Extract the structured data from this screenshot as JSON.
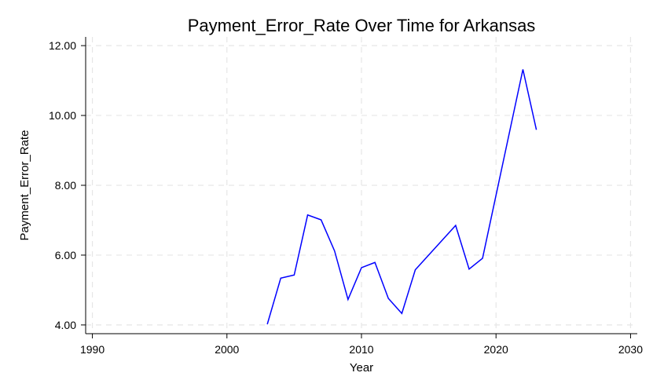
{
  "chart_data": {
    "type": "line",
    "title": "Payment_Error_Rate Over Time for Arkansas",
    "xlabel": "Year",
    "ylabel": "Payment_Error_Rate",
    "xlim": [
      1989.5,
      2030.5
    ],
    "ylim": [
      3.75,
      12.25
    ],
    "x_ticks": [
      1990,
      2000,
      2010,
      2020,
      2030
    ],
    "x_tick_labels": [
      "1990",
      "2000",
      "2010",
      "2020",
      "2030"
    ],
    "y_ticks": [
      4,
      6,
      8,
      10,
      12
    ],
    "y_tick_labels": [
      "4.00",
      "6.00",
      "8.00",
      "10.00",
      "12.00"
    ],
    "grid": true,
    "series": [
      {
        "color": "#0000ff",
        "x": [
          2003,
          2004,
          2005,
          2006,
          2007,
          2008,
          2009,
          2010,
          2011,
          2012,
          2013,
          2014,
          2017,
          2018,
          2019,
          2022,
          2023
        ],
        "y": [
          4.02,
          5.34,
          5.43,
          7.15,
          7.01,
          6.12,
          4.73,
          5.64,
          5.79,
          4.76,
          4.33,
          5.58,
          6.85,
          5.6,
          5.91,
          11.32,
          9.59
        ]
      }
    ]
  }
}
